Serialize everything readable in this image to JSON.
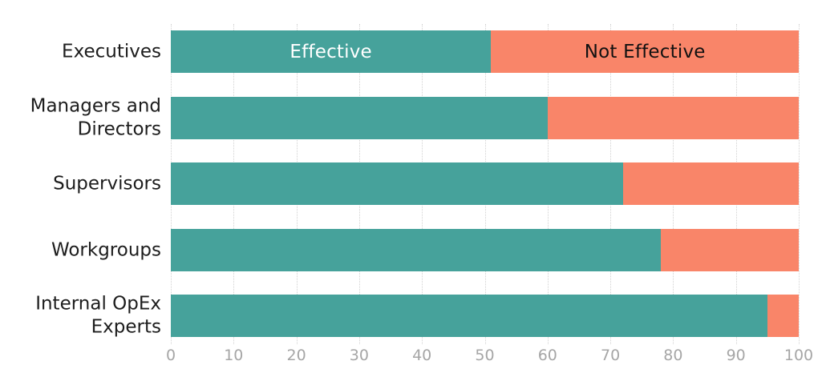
{
  "chart_data": {
    "type": "bar",
    "orientation": "horizontal",
    "stacked": true,
    "title": "",
    "xlabel": "",
    "ylabel": "",
    "xlim": [
      0,
      100
    ],
    "grid": "vertical-dotted",
    "legend_position": "inside-first-bar",
    "categories": [
      "Executives",
      "Managers and\nDirectors",
      "Supervisors",
      "Workgroups",
      "Internal OpEx\nExperts"
    ],
    "series": [
      {
        "name": "Effective",
        "color": "#46a29b",
        "values": [
          51,
          60,
          72,
          78,
          95
        ]
      },
      {
        "name": "Not Effective",
        "color": "#f98569",
        "values": [
          49,
          40,
          28,
          22,
          5
        ]
      }
    ],
    "x_ticks": [
      0,
      10,
      20,
      30,
      40,
      50,
      60,
      70,
      80,
      90,
      100
    ],
    "x_tick_labels": [
      "0",
      "10",
      "20",
      "30",
      "40",
      "50",
      "60",
      "70",
      "80",
      "90",
      "100"
    ]
  },
  "colors": {
    "effective": "#46a29b",
    "not_effective": "#f98569",
    "gridline": "#d2d2d2",
    "tick_text": "#a6a6a6",
    "category_text": "#1d1d1d",
    "effective_label_text": "#ffffff",
    "not_effective_label_text": "#111111",
    "background": "#ffffff"
  }
}
